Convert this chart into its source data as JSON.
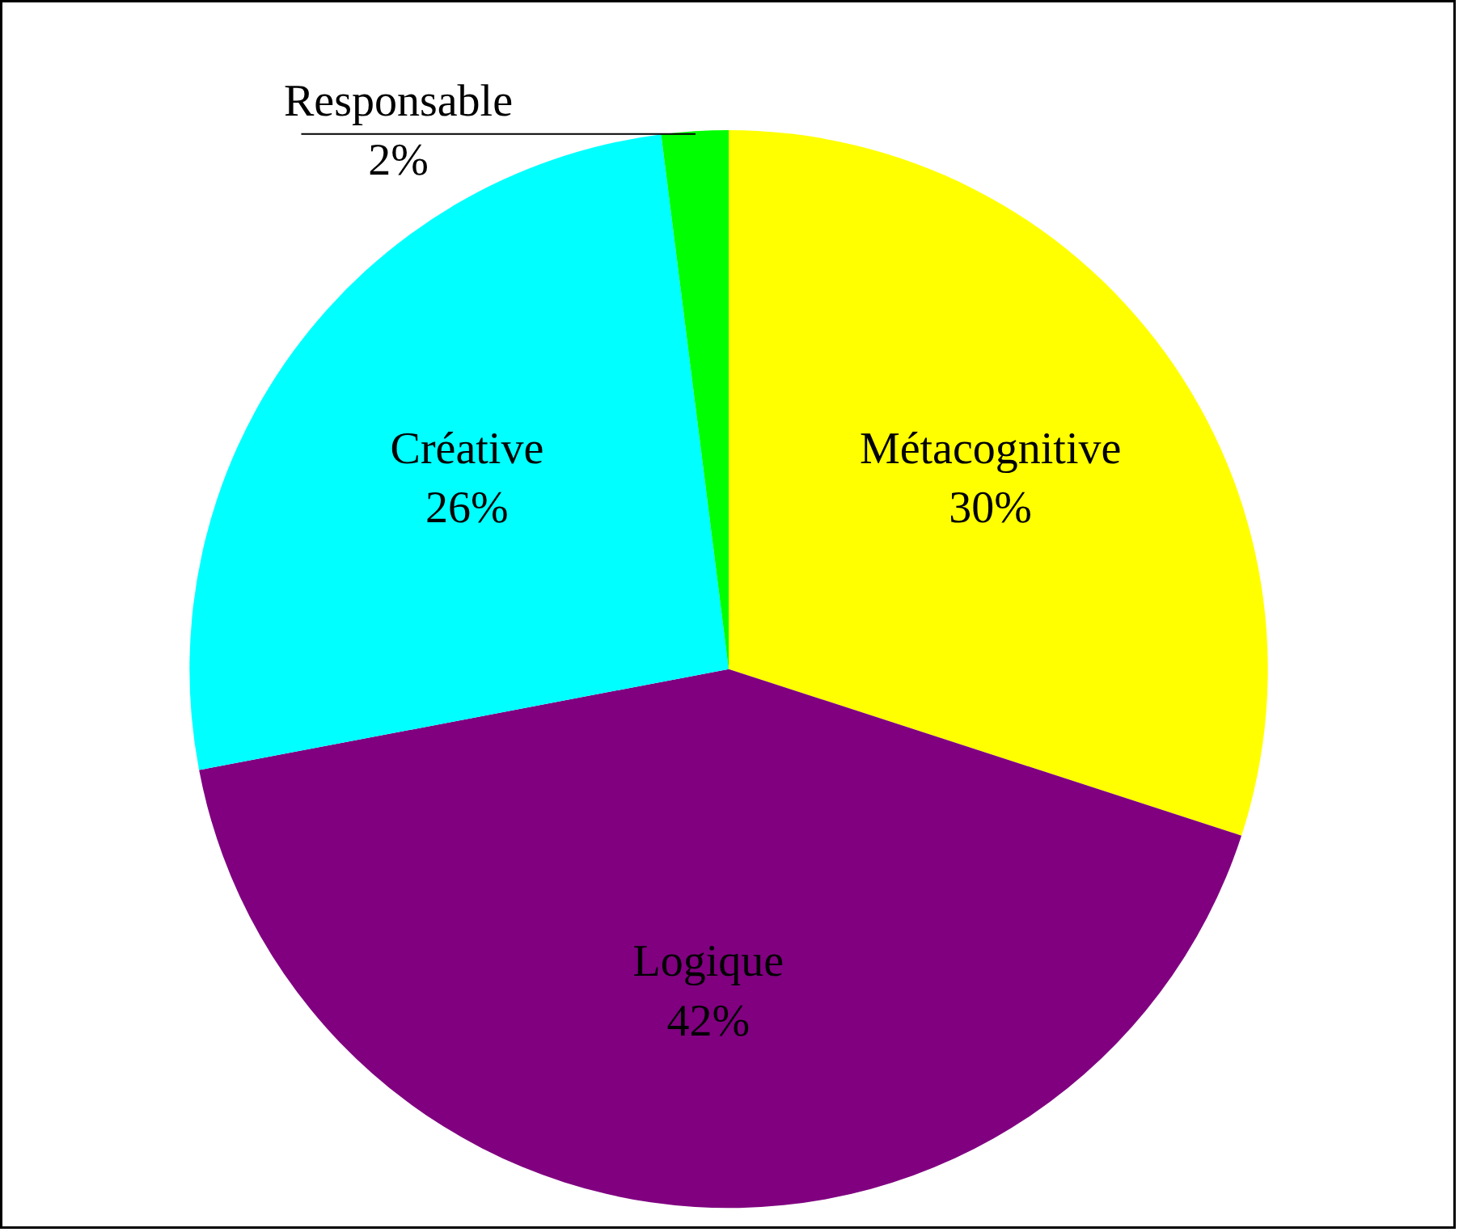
{
  "chart_data": {
    "type": "pie",
    "categories": [
      "Métacognitive",
      "Logique",
      "Créative",
      "Responsable"
    ],
    "values": [
      30,
      42,
      26,
      2
    ],
    "value_labels": [
      "30%",
      "42%",
      "26%",
      "2%"
    ],
    "colors": [
      "#ffff00",
      "#800080",
      "#00ffff",
      "#00ff00"
    ]
  }
}
